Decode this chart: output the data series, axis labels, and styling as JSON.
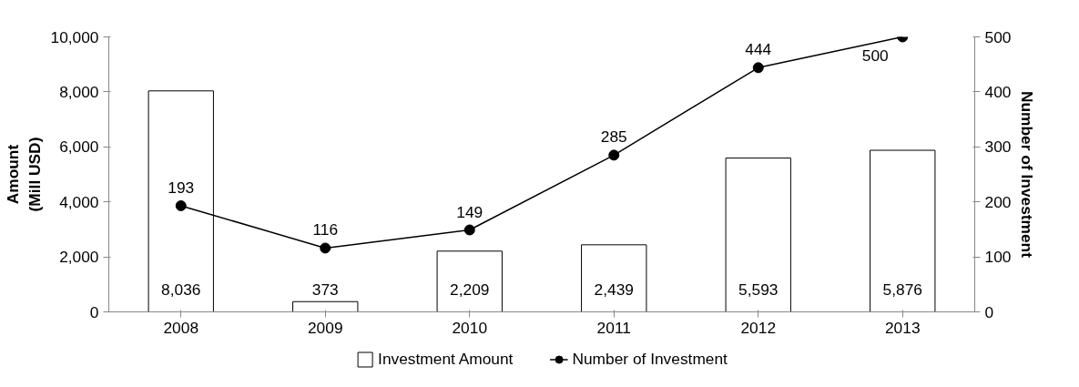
{
  "chart_data": {
    "type": "bar",
    "categories": [
      "2008",
      "2009",
      "2010",
      "2011",
      "2012",
      "2013"
    ],
    "ylabel": "Amount\n(Mill USD)",
    "y2label": "Number of Investment",
    "series": [
      {
        "name": "Investment Amount",
        "color": "#ffffff",
        "values": [
          8036,
          373,
          2209,
          2439,
          5593,
          5876
        ],
        "value_labels": [
          "8,036",
          "373",
          "2,209",
          "2,439",
          "5,593",
          "5,876"
        ]
      },
      {
        "name": "Number of Investment",
        "type": "line",
        "axis": "y2",
        "color": "#000000",
        "marker": "circle",
        "values": [
          193,
          116,
          149,
          285,
          444,
          500
        ],
        "value_labels": [
          "193",
          "116",
          "149",
          "285",
          "444",
          "500"
        ]
      }
    ],
    "ylim": [
      0,
      10000
    ],
    "yticks": [
      {
        "value": 0,
        "label": "0"
      },
      {
        "value": 2000,
        "label": "2,000"
      },
      {
        "value": 4000,
        "label": "4,000"
      },
      {
        "value": 6000,
        "label": "6,000"
      },
      {
        "value": 8000,
        "label": "8,000"
      },
      {
        "value": 10000,
        "label": "10,000"
      }
    ],
    "y2lim": [
      0,
      500
    ],
    "y2ticks": [
      0,
      100,
      200,
      300,
      400,
      500
    ],
    "legend": "bottom",
    "grid": false
  }
}
